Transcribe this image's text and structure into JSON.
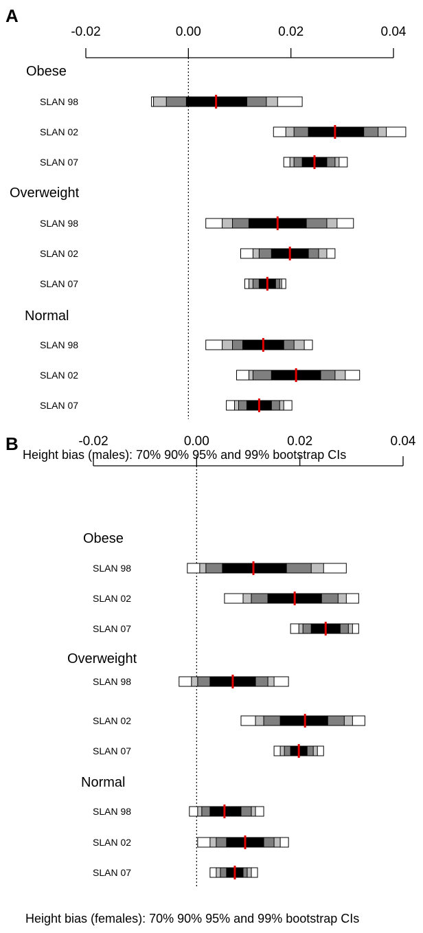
{
  "chart_data": [
    {
      "type": "forest",
      "panel_label": "A",
      "x_ticks": [
        -0.02,
        0.0,
        0.02,
        0.04
      ],
      "x_tick_labels": [
        "-0.02",
        "0.00",
        "0.02",
        "0.04"
      ],
      "xlim": [
        -0.02,
        0.04
      ],
      "reference_line": 0.0,
      "xlabel": "Height bias (males): 70% 90% 95% and 99% bootstrap CIs",
      "groups": [
        {
          "label": "Obese",
          "rows": [
            {
              "label": "SLAN 98",
              "estimate": 0.0054,
              "ci70": [
                -0.0004,
                0.0114
              ],
              "ci90": [
                -0.0043,
                0.0152
              ],
              "ci95": [
                -0.0068,
                0.0174
              ],
              "ci99": [
                -0.0072,
                0.0222
              ]
            },
            {
              "label": "SLAN 02",
              "estimate": 0.0286,
              "ci70": [
                0.0234,
                0.0342
              ],
              "ci90": [
                0.0206,
                0.037
              ],
              "ci95": [
                0.019,
                0.0386
              ],
              "ci99": [
                0.0166,
                0.0424
              ]
            },
            {
              "label": "SLAN 07",
              "estimate": 0.0246,
              "ci70": [
                0.0222,
                0.027
              ],
              "ci90": [
                0.0206,
                0.0286
              ],
              "ci95": [
                0.0198,
                0.0294
              ],
              "ci99": [
                0.0186,
                0.031
              ]
            }
          ]
        },
        {
          "label": "Overweight",
          "rows": [
            {
              "label": "SLAN 98",
              "estimate": 0.0174,
              "ci70": [
                0.0118,
                0.023
              ],
              "ci90": [
                0.0086,
                0.027
              ],
              "ci95": [
                0.0066,
                0.029
              ],
              "ci99": [
                0.0034,
                0.0322
              ]
            },
            {
              "label": "SLAN 02",
              "estimate": 0.0198,
              "ci70": [
                0.0162,
                0.0234
              ],
              "ci90": [
                0.0138,
                0.0254
              ],
              "ci95": [
                0.0126,
                0.027
              ],
              "ci99": [
                0.0102,
                0.0286
              ]
            },
            {
              "label": "SLAN 07",
              "estimate": 0.0154,
              "ci70": [
                0.0138,
                0.017
              ],
              "ci90": [
                0.0126,
                0.0178
              ],
              "ci95": [
                0.0118,
                0.0182
              ],
              "ci99": [
                0.011,
                0.019
              ]
            }
          ]
        },
        {
          "label": "Normal",
          "rows": [
            {
              "label": "SLAN 98",
              "estimate": 0.0146,
              "ci70": [
                0.0106,
                0.0186
              ],
              "ci90": [
                0.0086,
                0.0206
              ],
              "ci95": [
                0.0066,
                0.0226
              ],
              "ci99": [
                0.0034,
                0.0242
              ]
            },
            {
              "label": "SLAN 02",
              "estimate": 0.021,
              "ci70": [
                0.0162,
                0.0258
              ],
              "ci90": [
                0.0126,
                0.0286
              ],
              "ci95": [
                0.0118,
                0.0306
              ],
              "ci99": [
                0.0094,
                0.0334
              ]
            },
            {
              "label": "SLAN 07",
              "estimate": 0.0138,
              "ci70": [
                0.0114,
                0.0162
              ],
              "ci90": [
                0.0098,
                0.0178
              ],
              "ci95": [
                0.009,
                0.0186
              ],
              "ci99": [
                0.0074,
                0.0202
              ]
            }
          ]
        }
      ]
    },
    {
      "type": "forest",
      "panel_label": "B",
      "x_ticks": [
        -0.02,
        0.0,
        0.02,
        0.04
      ],
      "x_tick_labels": [
        "-0.02",
        "0.00",
        "0.02",
        "0.04"
      ],
      "xlim": [
        -0.02,
        0.04
      ],
      "reference_line": 0.0,
      "xlabel": "Height bias (females): 70% 90% 95% and 99% bootstrap CIs",
      "groups": [
        {
          "label": "Obese",
          "rows": [
            {
              "label": "SLAN 98",
              "estimate": 0.011,
              "ci70": [
                0.005,
                0.0174
              ],
              "ci90": [
                0.0018,
                0.0222
              ],
              "ci95": [
                0.0006,
                0.0246
              ],
              "ci99": [
                -0.0018,
                0.029
              ]
            },
            {
              "label": "SLAN 02",
              "estimate": 0.019,
              "ci70": [
                0.0138,
                0.0242
              ],
              "ci90": [
                0.0106,
                0.0274
              ],
              "ci95": [
                0.009,
                0.029
              ],
              "ci99": [
                0.0054,
                0.0314
              ]
            },
            {
              "label": "SLAN 07",
              "estimate": 0.025,
              "ci70": [
                0.0222,
                0.0278
              ],
              "ci90": [
                0.0206,
                0.0294
              ],
              "ci95": [
                0.0198,
                0.0302
              ],
              "ci99": [
                0.0182,
                0.0314
              ]
            }
          ]
        },
        {
          "label": "Overweight",
          "rows": [
            {
              "label": "SLAN 98",
              "estimate": 0.007,
              "ci70": [
                0.0026,
                0.0114
              ],
              "ci90": [
                0.0002,
                0.0138
              ],
              "ci95": [
                -0.001,
                0.015
              ],
              "ci99": [
                -0.0034,
                0.0178
              ]
            },
            {
              "label": "SLAN 02",
              "estimate": 0.021,
              "ci70": [
                0.0162,
                0.0254
              ],
              "ci90": [
                0.013,
                0.0286
              ],
              "ci95": [
                0.0114,
                0.0302
              ],
              "ci99": [
                0.0086,
                0.0326
              ]
            },
            {
              "label": "SLAN 07",
              "estimate": 0.0198,
              "ci70": [
                0.0182,
                0.0214
              ],
              "ci90": [
                0.017,
                0.0226
              ],
              "ci95": [
                0.0162,
                0.0234
              ],
              "ci99": [
                0.015,
                0.0246
              ]
            }
          ]
        },
        {
          "label": "Normal",
          "rows": [
            {
              "label": "SLAN 98",
              "estimate": 0.0054,
              "ci70": [
                0.0026,
                0.0086
              ],
              "ci90": [
                0.001,
                0.0106
              ],
              "ci95": [
                0.0002,
                0.0114
              ],
              "ci99": [
                -0.0014,
                0.013
              ]
            },
            {
              "label": "SLAN 02",
              "estimate": 0.0094,
              "ci70": [
                0.0058,
                0.013
              ],
              "ci90": [
                0.0038,
                0.015
              ],
              "ci95": [
                0.0026,
                0.0162
              ],
              "ci99": [
                0.0002,
                0.0178
              ]
            },
            {
              "label": "SLAN 07",
              "estimate": 0.0074,
              "ci70": [
                0.0058,
                0.009
              ],
              "ci90": [
                0.0046,
                0.0098
              ],
              "ci95": [
                0.0038,
                0.0106
              ],
              "ci99": [
                0.0026,
                0.0118
              ]
            }
          ]
        }
      ]
    }
  ],
  "style": {
    "ci70_color": "#000000",
    "ci90_color": "#7f7f7f",
    "ci95_color": "#bfbfbf",
    "ci99_color": "#ffffff",
    "estimate_color": "#e00000",
    "outline_color": "#000000"
  }
}
